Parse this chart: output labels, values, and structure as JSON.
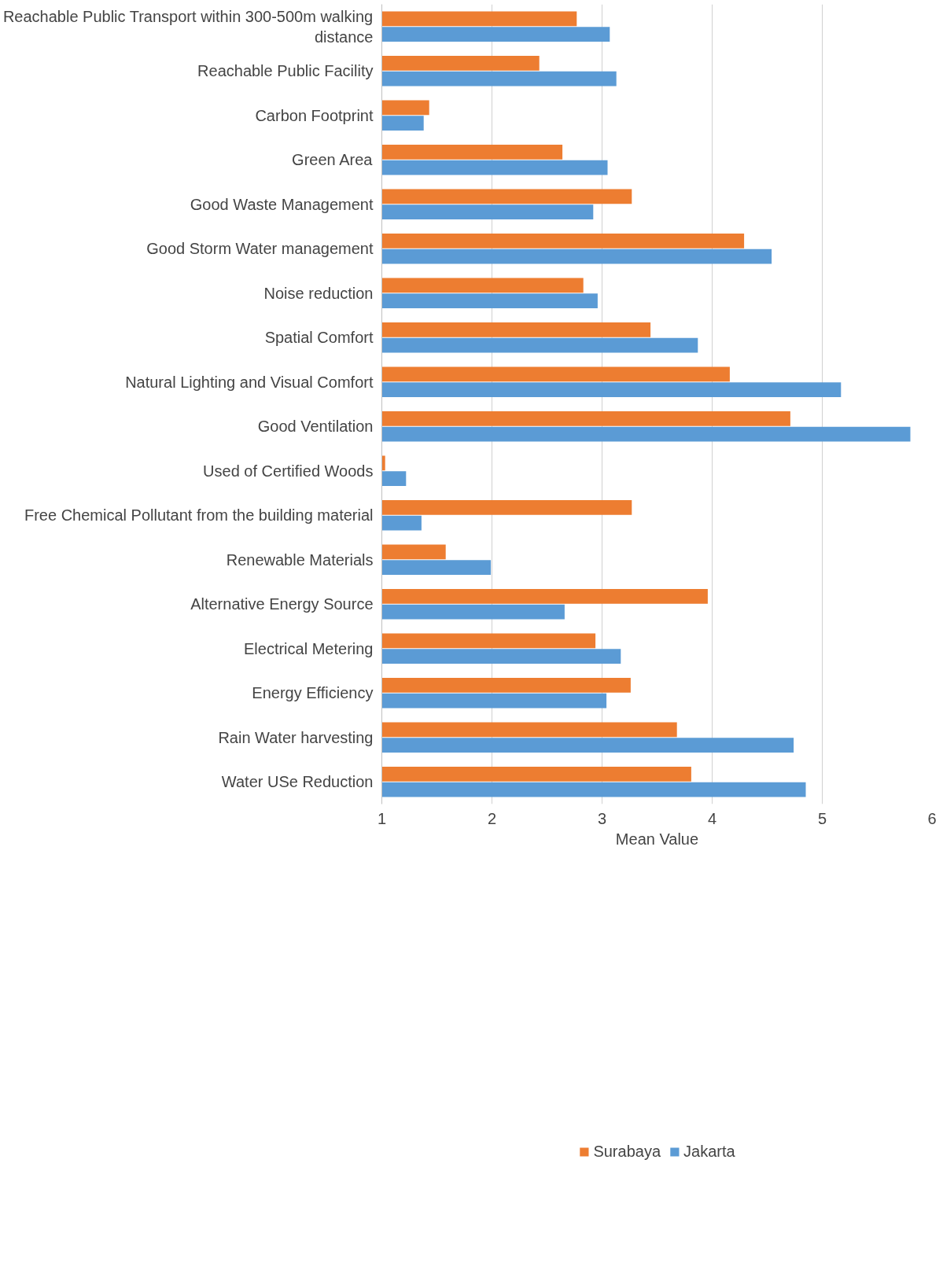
{
  "chart_data": {
    "type": "bar",
    "orientation": "horizontal",
    "xlabel": "Mean Value",
    "categories": [
      "Reachable Public Transport within 300-500m walking distance",
      "Reachable Public Facility",
      "Carbon Footprint",
      "Green Area",
      "Good Waste Management",
      "Good Storm Water management",
      "Noise reduction",
      "Spatial Comfort",
      "Natural Lighting and Visual Comfort",
      "Good Ventilation",
      "Used of Certified Woods",
      "Free Chemical Pollutant from the building material",
      "Renewable Materials",
      "Alternative Energy Source",
      "Electrical Metering",
      "Energy Efficiency",
      "Rain Water harvesting",
      "Water USe Reduction"
    ],
    "series": [
      {
        "name": "Surabaya",
        "color": "#ed7d31",
        "values": [
          2.77,
          2.43,
          1.43,
          2.64,
          3.27,
          4.29,
          2.83,
          3.44,
          4.16,
          4.71,
          1.03,
          3.27,
          1.58,
          3.96,
          2.94,
          3.26,
          3.68,
          3.81
        ]
      },
      {
        "name": "Jakarta",
        "color": "#5b9bd5",
        "values": [
          3.07,
          3.13,
          1.38,
          3.05,
          2.92,
          4.54,
          2.96,
          3.87,
          5.17,
          5.8,
          1.22,
          1.36,
          1.99,
          2.66,
          3.17,
          3.04,
          4.74,
          4.85
        ]
      }
    ],
    "xlim": [
      1,
      6
    ],
    "xticks": [
      1,
      2,
      3,
      4,
      5,
      6
    ],
    "grid": "x",
    "legend": "bottom"
  }
}
